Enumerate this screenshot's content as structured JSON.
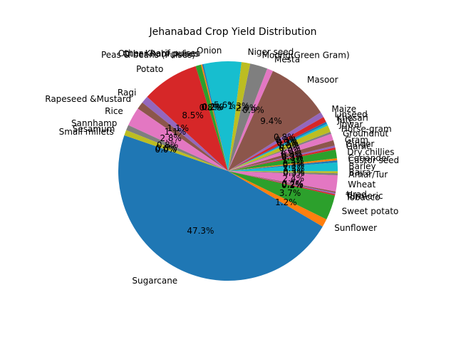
{
  "chart_data": {
    "type": "pie",
    "title": "Jehanabad Crop Yield Distribution",
    "start_angle_deg": 161,
    "direction": "counterclockwise",
    "slices": [
      {
        "label": "Sugarcane",
        "value": 47.3,
        "pct_label": "47.3%",
        "color": "#1f77b4"
      },
      {
        "label": "Sunflower",
        "value": 1.2,
        "pct_label": "1.2%",
        "color": "#ff7f0e"
      },
      {
        "label": "Sweet potato",
        "value": 3.7,
        "pct_label": "3.7%",
        "color": "#2ca02c"
      },
      {
        "label": "Tobacco",
        "value": 0.2,
        "pct_label": "0.2%",
        "color": "#d62728"
      },
      {
        "label": "Turmeric",
        "value": 0.2,
        "pct_label": "0.2%",
        "color": "#9467bd"
      },
      {
        "label": "Urad",
        "value": 0.2,
        "pct_label": "0.2%",
        "color": "#8c564b"
      },
      {
        "label": "Wheat",
        "value": 2.4,
        "pct_label": "2.4%",
        "color": "#e377c2"
      },
      {
        "label": "Arhar/Tur",
        "value": 0.3,
        "pct_label": "0.3%",
        "color": "#7f7f7f"
      },
      {
        "label": "Bajra",
        "value": 0.3,
        "pct_label": "0.3%",
        "color": "#bcbd22"
      },
      {
        "label": "Barley",
        "value": 1.3,
        "pct_label": "1.3%",
        "color": "#17becf"
      },
      {
        "label": "Castor seed",
        "value": 0.3,
        "pct_label": "0.3%",
        "color": "#1f77b4"
      },
      {
        "label": "Coriander",
        "value": 0.3,
        "pct_label": "0.3%",
        "color": "#ff7f0e"
      },
      {
        "label": "Dry chillies",
        "value": 1.3,
        "pct_label": "1.3%",
        "color": "#2ca02c"
      },
      {
        "label": "Garlic",
        "value": 0.3,
        "pct_label": "0.3%",
        "color": "#d62728"
      },
      {
        "label": "Ginger",
        "value": 0.3,
        "pct_label": "0.3%",
        "color": "#9467bd"
      },
      {
        "label": "Gram",
        "value": 0.8,
        "pct_label": "0.8%",
        "color": "#8c564b"
      },
      {
        "label": "Groundnut",
        "value": 1.0,
        "pct_label": "1.0%",
        "color": "#e377c2"
      },
      {
        "label": "Horse-gram",
        "value": 0.3,
        "pct_label": "0.3%",
        "color": "#7f7f7f"
      },
      {
        "label": "Jowar",
        "value": 1.0,
        "pct_label": "1.0%",
        "color": "#bcbd22"
      },
      {
        "label": "Jute",
        "value": 0.3,
        "pct_label": "0.3%",
        "color": "#17becf"
      },
      {
        "label": "Khesari",
        "value": 0.3,
        "pct_label": "0.3%",
        "color": "#1f77b4"
      },
      {
        "label": "Linseed",
        "value": 0.8,
        "pct_label": "0.8%",
        "color": "#d62728"
      },
      {
        "label": "Maize",
        "value": 0.8,
        "pct_label": "0.8%",
        "color": "#9467bd"
      },
      {
        "label": "Masoor",
        "value": 9.4,
        "pct_label": "9.4%",
        "color": "#8c564b"
      },
      {
        "label": "Mesta",
        "value": 0.9,
        "pct_label": "0.9%",
        "color": "#e377c2"
      },
      {
        "label": "Moong(Green Gram)",
        "value": 2.6,
        "pct_label": "2.6%",
        "color": "#7f7f7f"
      },
      {
        "label": "Niger seed",
        "value": 1.3,
        "pct_label": "1.3%",
        "color": "#bcbd22"
      },
      {
        "label": "Onion",
        "value": 5.6,
        "pct_label": "5.6%",
        "color": "#17becf"
      },
      {
        "label": "Other Kharif pulses",
        "value": 0.2,
        "pct_label": "0.2%",
        "color": "#1f77b4"
      },
      {
        "label": "Other Rabi pulses",
        "value": 0.2,
        "pct_label": "0.2%",
        "color": "#ff7f0e"
      },
      {
        "label": "Peas & beans (Pulses)",
        "value": 0.8,
        "pct_label": "0.8%",
        "color": "#2ca02c"
      },
      {
        "label": "Potato",
        "value": 8.5,
        "pct_label": "8.5%",
        "color": "#d62728"
      },
      {
        "label": "Ragi",
        "value": 1.1,
        "pct_label": "1.1%",
        "color": "#9467bd"
      },
      {
        "label": "Rapeseed &Mustard",
        "value": 1.1,
        "pct_label": "1.1%",
        "color": "#8c564b"
      },
      {
        "label": "Rice",
        "value": 2.8,
        "pct_label": "2.8%",
        "color": "#e377c2"
      },
      {
        "label": "Sannhamp",
        "value": 0.8,
        "pct_label": "0.8%",
        "color": "#7f7f7f"
      },
      {
        "label": "Sesamum",
        "value": 0.8,
        "pct_label": "0.8%",
        "color": "#bcbd22"
      },
      {
        "label": "Small millets",
        "value": 0.0,
        "pct_label": "0.0%",
        "color": "#17becf"
      }
    ]
  }
}
